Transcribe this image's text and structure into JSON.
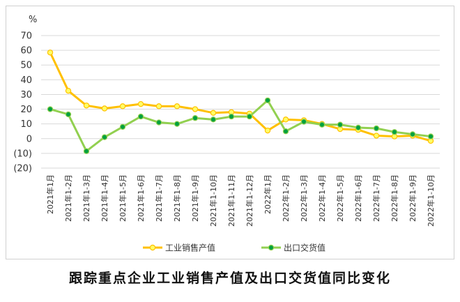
{
  "caption": "跟踪重点企业工业销售产值及出口交货值同比变化",
  "chart_data": {
    "type": "line",
    "unit_label": "%",
    "ylim": [
      -20,
      70
    ],
    "yticks": [
      {
        "value": 70,
        "label": "70"
      },
      {
        "value": 60,
        "label": "60"
      },
      {
        "value": 50,
        "label": "50"
      },
      {
        "value": 40,
        "label": "40"
      },
      {
        "value": 30,
        "label": "30"
      },
      {
        "value": 20,
        "label": "20"
      },
      {
        "value": 10,
        "label": "10"
      },
      {
        "value": 0,
        "label": "0"
      },
      {
        "value": -10,
        "label": "(10)"
      },
      {
        "value": -20,
        "label": "(20)"
      }
    ],
    "negative_tick_color": "#c00000",
    "grid": true,
    "legend_position": "bottom",
    "categories": [
      "2021年1月",
      "2021年1-2月",
      "2021年1-3月",
      "2021年1-4月",
      "2021年1-5月",
      "2021年1-6月",
      "2021年1-7月",
      "2021年1-8月",
      "2021年1-9月",
      "2021年1-10月",
      "2021年1-11月",
      "2021年1-12月",
      "2022年1月",
      "2022年1-2月",
      "2022年1-3月",
      "2022年1-4月",
      "2022年1-5月",
      "2022年1-6月",
      "2022年1-7月",
      "2022年1-8月",
      "2022年1-9月",
      "2022年1-10月"
    ],
    "series": [
      {
        "name": "工业销售产值",
        "color": "#ffc000",
        "marker_fill": "#ffff66",
        "values": [
          58.5,
          32.5,
          22.5,
          20.5,
          22,
          23.5,
          22,
          22,
          20,
          17.5,
          18,
          17,
          5.5,
          13,
          12.5,
          10,
          6.5,
          6,
          2,
          1.5,
          2,
          -1.5
        ]
      },
      {
        "name": "出口交货值",
        "color": "#92d050",
        "marker_fill": "#00a03e",
        "values": [
          20,
          16.5,
          -8.5,
          1,
          8,
          15,
          11,
          10,
          14,
          13,
          15,
          15,
          26,
          5,
          11.5,
          9.5,
          9.5,
          7.5,
          7,
          4.5,
          3,
          1.5
        ]
      }
    ]
  }
}
